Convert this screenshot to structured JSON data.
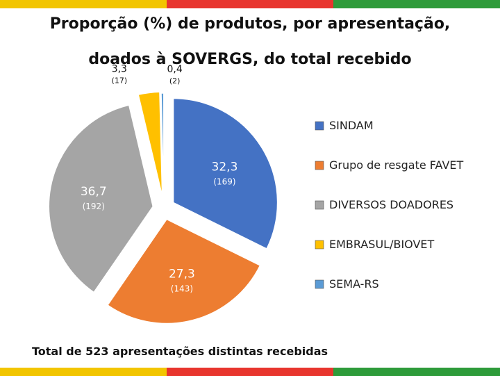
{
  "flag_colors": [
    "#f2c500",
    "#e8352e",
    "#2e9b3a"
  ],
  "chart_data": {
    "type": "pie",
    "title_lines": [
      "Proporção (%) de produtos, por apresentação,",
      "doados à SOVERGS, do total recebido"
    ],
    "footnote": "Total de 523 apresentações distintas recebidas",
    "legend_position": "right",
    "slices": [
      {
        "label": "SINDAM",
        "percent": 32.3,
        "percent_label": "32,3",
        "count": 169,
        "count_label": "(169)",
        "color": "#4472c4"
      },
      {
        "label": "Grupo de resgate FAVET",
        "percent": 27.3,
        "percent_label": "27,3",
        "count": 143,
        "count_label": "(143)",
        "color": "#ed7d31"
      },
      {
        "label": "DIVERSOS DOADORES",
        "percent": 36.7,
        "percent_label": "36,7",
        "count": 192,
        "count_label": "(192)",
        "color": "#a5a5a5"
      },
      {
        "label": "EMBRASUL/BIOVET",
        "percent": 3.3,
        "percent_label": "3,3",
        "count": 17,
        "count_label": "(17)",
        "color": "#ffc000"
      },
      {
        "label": "SEMA-RS",
        "percent": 0.4,
        "percent_label": "0,4",
        "count": 2,
        "count_label": "(2)",
        "color": "#5b9bd5"
      }
    ]
  }
}
